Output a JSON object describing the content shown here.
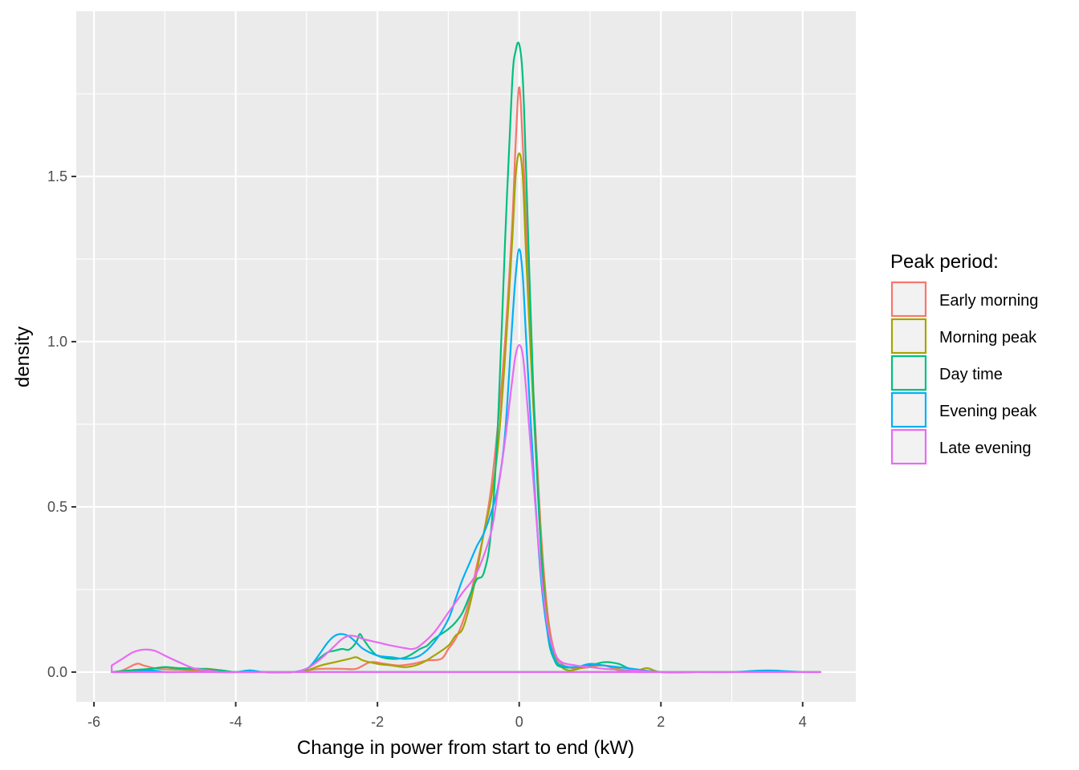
{
  "chart_data": {
    "type": "line",
    "title": "",
    "xlabel": "Change in power from start to end (kW)",
    "ylabel": "density",
    "xlim": [
      -6.25,
      4.75
    ],
    "ylim": [
      -0.09,
      2.0
    ],
    "x_ticks": [
      -6,
      -4,
      -2,
      0,
      2,
      4
    ],
    "x_tick_labels": [
      "-6",
      "-4",
      "-2",
      "0",
      "2",
      "4"
    ],
    "y_ticks": [
      0.0,
      0.5,
      1.0,
      1.5
    ],
    "y_tick_labels": [
      "0.0",
      "0.5",
      "1.0",
      "1.5"
    ],
    "grid": true,
    "legend": {
      "title": "Peak period:",
      "position": "right"
    },
    "series": [
      {
        "name": "Early morning",
        "color": "#F8766D",
        "x": [
          -5.75,
          -5.6,
          -5.4,
          -5.3,
          -5.1,
          -4.9,
          -4.6,
          -4.3,
          -4.0,
          -3.6,
          -3.2,
          -3.0,
          -2.8,
          -2.5,
          -2.3,
          -2.1,
          -1.9,
          -1.7,
          -1.5,
          -1.3,
          -1.1,
          -1.0,
          -0.9,
          -0.8,
          -0.7,
          -0.6,
          -0.5,
          -0.4,
          -0.3,
          -0.2,
          -0.1,
          -0.05,
          0.0,
          0.05,
          0.1,
          0.2,
          0.3,
          0.4,
          0.5,
          0.6,
          0.7,
          0.8,
          1.0,
          1.2,
          1.4,
          1.6,
          2.0,
          2.5,
          3.0,
          3.5,
          4.0,
          4.25
        ],
        "y": [
          0.0,
          0.005,
          0.025,
          0.02,
          0.01,
          0.008,
          0.005,
          0.0,
          0.0,
          0.0,
          0.0,
          0.005,
          0.01,
          0.01,
          0.01,
          0.03,
          0.025,
          0.02,
          0.025,
          0.035,
          0.04,
          0.07,
          0.1,
          0.15,
          0.22,
          0.32,
          0.42,
          0.55,
          0.75,
          1.0,
          1.35,
          1.6,
          1.77,
          1.6,
          1.35,
          0.85,
          0.45,
          0.18,
          0.06,
          0.025,
          0.015,
          0.01,
          0.015,
          0.02,
          0.005,
          0.0,
          0.0,
          0.0,
          0.0,
          0.0,
          0.0,
          0.0
        ]
      },
      {
        "name": "Morning peak",
        "color": "#A3A500",
        "x": [
          -5.75,
          -5.5,
          -5.2,
          -5.0,
          -4.8,
          -4.6,
          -4.4,
          -4.2,
          -4.0,
          -3.6,
          -3.2,
          -3.0,
          -2.8,
          -2.6,
          -2.4,
          -2.3,
          -2.2,
          -2.0,
          -1.8,
          -1.6,
          -1.4,
          -1.2,
          -1.0,
          -0.9,
          -0.8,
          -0.7,
          -0.6,
          -0.5,
          -0.4,
          -0.3,
          -0.2,
          -0.1,
          -0.05,
          0.0,
          0.05,
          0.1,
          0.2,
          0.3,
          0.4,
          0.5,
          0.6,
          0.7,
          0.8,
          1.0,
          1.2,
          1.4,
          1.6,
          1.8,
          2.0,
          2.5,
          3.0,
          3.5,
          4.0,
          4.25
        ],
        "y": [
          0.0,
          0.005,
          0.01,
          0.015,
          0.01,
          0.008,
          0.01,
          0.005,
          0.0,
          0.0,
          0.0,
          0.005,
          0.02,
          0.03,
          0.04,
          0.045,
          0.035,
          0.025,
          0.02,
          0.015,
          0.025,
          0.05,
          0.08,
          0.11,
          0.13,
          0.2,
          0.3,
          0.42,
          0.52,
          0.68,
          0.95,
          1.3,
          1.5,
          1.57,
          1.5,
          1.25,
          0.8,
          0.42,
          0.16,
          0.05,
          0.015,
          0.005,
          0.008,
          0.02,
          0.02,
          0.01,
          0.0,
          0.012,
          0.0,
          0.0,
          0.0,
          0.0,
          0.0,
          0.0
        ]
      },
      {
        "name": "Day time",
        "color": "#00BF7D",
        "x": [
          -5.75,
          -5.5,
          -5.2,
          -5.0,
          -4.8,
          -4.5,
          -4.2,
          -4.0,
          -3.8,
          -3.6,
          -3.2,
          -3.0,
          -2.9,
          -2.8,
          -2.7,
          -2.6,
          -2.5,
          -2.4,
          -2.3,
          -2.25,
          -2.2,
          -2.1,
          -2.0,
          -1.8,
          -1.6,
          -1.4,
          -1.3,
          -1.2,
          -1.0,
          -0.9,
          -0.8,
          -0.7,
          -0.6,
          -0.5,
          -0.4,
          -0.3,
          -0.2,
          -0.1,
          -0.05,
          0.0,
          0.05,
          0.1,
          0.2,
          0.3,
          0.4,
          0.5,
          0.6,
          0.8,
          1.0,
          1.2,
          1.4,
          1.6,
          2.0,
          2.5,
          3.0,
          3.5,
          4.0,
          4.25
        ],
        "y": [
          0.0,
          0.005,
          0.01,
          0.015,
          0.012,
          0.01,
          0.005,
          0.0,
          0.005,
          0.0,
          0.0,
          0.01,
          0.025,
          0.045,
          0.06,
          0.065,
          0.07,
          0.068,
          0.09,
          0.115,
          0.1,
          0.07,
          0.05,
          0.04,
          0.045,
          0.07,
          0.08,
          0.1,
          0.13,
          0.15,
          0.18,
          0.23,
          0.28,
          0.3,
          0.42,
          0.75,
          1.3,
          1.78,
          1.88,
          1.9,
          1.8,
          1.5,
          0.85,
          0.4,
          0.12,
          0.035,
          0.015,
          0.015,
          0.02,
          0.03,
          0.025,
          0.008,
          0.0,
          0.0,
          0.0,
          0.0,
          0.0,
          0.0
        ]
      },
      {
        "name": "Evening peak",
        "color": "#00B0F6",
        "x": [
          -5.75,
          -5.5,
          -5.2,
          -5.0,
          -4.8,
          -4.5,
          -4.2,
          -4.0,
          -3.8,
          -3.6,
          -3.2,
          -3.0,
          -2.9,
          -2.8,
          -2.7,
          -2.6,
          -2.5,
          -2.4,
          -2.3,
          -2.2,
          -2.0,
          -1.8,
          -1.6,
          -1.4,
          -1.2,
          -1.0,
          -0.9,
          -0.8,
          -0.7,
          -0.6,
          -0.5,
          -0.4,
          -0.3,
          -0.2,
          -0.1,
          -0.05,
          0.0,
          0.05,
          0.1,
          0.2,
          0.3,
          0.4,
          0.5,
          0.6,
          0.8,
          1.0,
          1.2,
          1.4,
          1.6,
          2.0,
          2.5,
          3.0,
          3.5,
          4.0,
          4.25
        ],
        "y": [
          0.0,
          0.0,
          0.005,
          0.0,
          0.0,
          0.0,
          0.0,
          0.0,
          0.005,
          0.0,
          0.0,
          0.01,
          0.03,
          0.06,
          0.09,
          0.11,
          0.115,
          0.108,
          0.09,
          0.07,
          0.05,
          0.045,
          0.04,
          0.05,
          0.09,
          0.16,
          0.22,
          0.28,
          0.33,
          0.38,
          0.42,
          0.48,
          0.56,
          0.72,
          1.05,
          1.2,
          1.28,
          1.2,
          1.0,
          0.62,
          0.3,
          0.12,
          0.04,
          0.02,
          0.015,
          0.025,
          0.02,
          0.015,
          0.01,
          0.0,
          0.0,
          0.0,
          0.005,
          0.0,
          0.0
        ]
      },
      {
        "name": "Late evening",
        "color": "#E76BF3",
        "x": [
          -5.75,
          -5.6,
          -5.45,
          -5.3,
          -5.15,
          -5.0,
          -4.8,
          -4.6,
          -4.4,
          -4.2,
          -4.0,
          -3.6,
          -3.2,
          -3.0,
          -2.8,
          -2.6,
          -2.5,
          -2.4,
          -2.3,
          -2.2,
          -2.0,
          -1.8,
          -1.6,
          -1.5,
          -1.4,
          -1.2,
          -1.0,
          -0.8,
          -0.6,
          -0.4,
          -0.3,
          -0.2,
          -0.1,
          -0.05,
          0.0,
          0.05,
          0.1,
          0.2,
          0.3,
          0.4,
          0.5,
          0.6,
          0.8,
          1.0,
          1.2,
          1.6,
          2.0,
          2.5,
          3.0,
          3.5,
          4.0,
          4.25
        ],
        "y": [
          0.02,
          0.04,
          0.06,
          0.068,
          0.065,
          0.05,
          0.03,
          0.012,
          0.005,
          0.0,
          0.0,
          0.0,
          0.0,
          0.01,
          0.04,
          0.08,
          0.1,
          0.11,
          0.108,
          0.1,
          0.09,
          0.08,
          0.072,
          0.07,
          0.08,
          0.12,
          0.18,
          0.24,
          0.3,
          0.42,
          0.55,
          0.7,
          0.88,
          0.96,
          0.99,
          0.96,
          0.85,
          0.58,
          0.32,
          0.14,
          0.06,
          0.03,
          0.02,
          0.015,
          0.01,
          0.005,
          0.0,
          0.0,
          0.0,
          0.0,
          0.0,
          0.0
        ]
      }
    ]
  }
}
